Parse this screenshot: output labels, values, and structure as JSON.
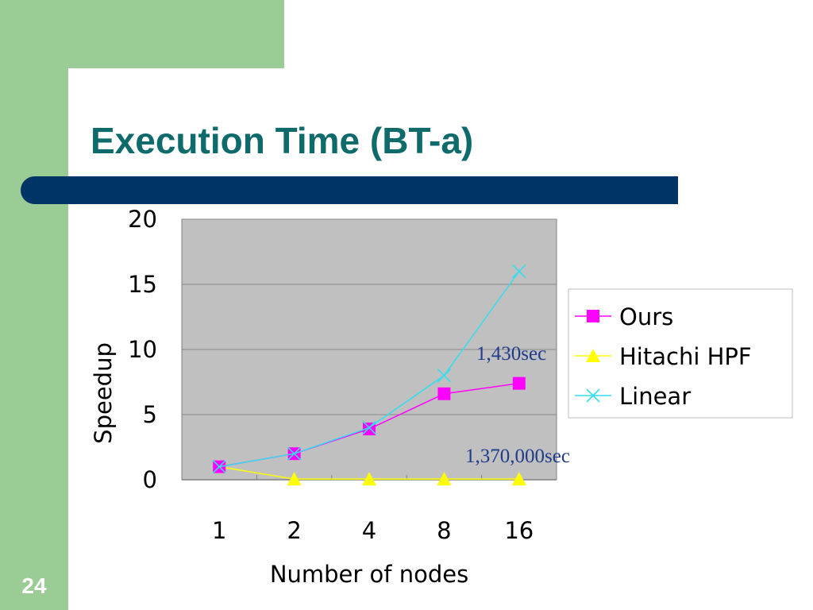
{
  "slide": {
    "title": "Execution Time (BT-a)",
    "number": "24"
  },
  "colors": {
    "title": "#0f6b6b",
    "band": "#003366",
    "green": "#9ccc95",
    "plot_background": "#c0c0c0",
    "ours": "#ff00ff",
    "hitachi": "#ffff00",
    "linear": "#33ddee",
    "annotation": "#1f3c8a"
  },
  "chart_data": {
    "type": "line",
    "categories": [
      "1",
      "2",
      "4",
      "8",
      "16"
    ],
    "xlabel": "Number of nodes",
    "ylabel": "Speedup",
    "ylim": [
      0,
      20
    ],
    "yticks": [
      0,
      5,
      10,
      15,
      20
    ],
    "grid": true,
    "legend_position": "right",
    "series": [
      {
        "name": "Ours",
        "values": [
          1,
          2,
          3.9,
          6.6,
          7.4
        ],
        "color": "#ff00ff",
        "marker": "square"
      },
      {
        "name": "Hitachi HPF",
        "values": [
          1,
          0.05,
          0.05,
          0.05,
          0.05
        ],
        "color": "#ffff00",
        "marker": "triangle"
      },
      {
        "name": "Linear",
        "values": [
          1,
          2,
          4,
          8,
          16
        ],
        "color": "#33ddee",
        "marker": "x"
      }
    ],
    "annotations": [
      {
        "text": "1,430sec"
      },
      {
        "text": "1,370,000sec"
      }
    ]
  }
}
